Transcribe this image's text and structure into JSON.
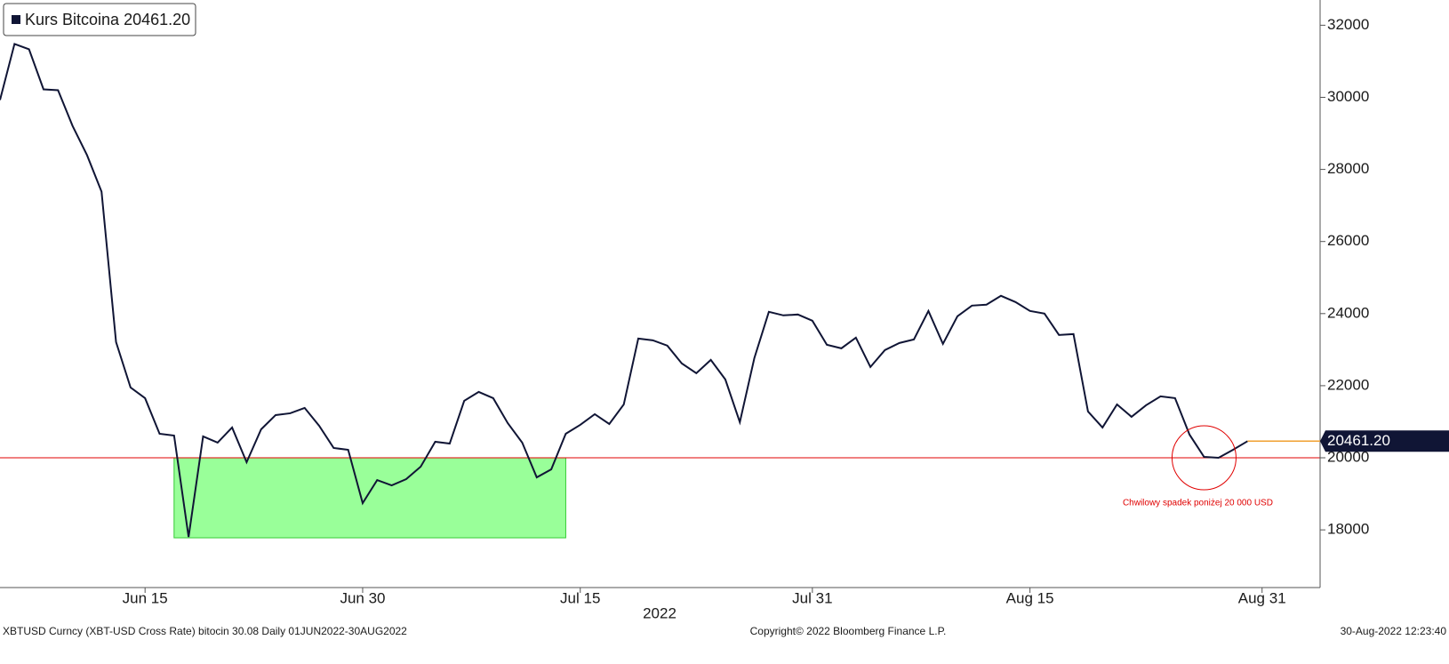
{
  "chart_data": {
    "type": "line",
    "series": [
      {
        "name": "Kurs Bitcoina",
        "color": "#101535",
        "values": [
          29926,
          31481,
          31333,
          30222,
          30198,
          29210,
          28395,
          27383,
          23210,
          21951,
          21654,
          20667,
          20617,
          17802,
          20593,
          20420,
          20840,
          19877,
          20790,
          21185,
          21235,
          21383,
          20889,
          20272,
          20222,
          18741,
          19383,
          19235,
          19407,
          19753,
          20444,
          20395,
          21580,
          21827,
          21654,
          20963,
          20420,
          19457,
          19679,
          20667,
          20914,
          21210,
          20938,
          21481,
          23309,
          23259,
          23111,
          22617,
          22346,
          22716,
          22173,
          20988,
          22765,
          24049,
          23951,
          23975,
          23802,
          23136,
          23037,
          23333,
          22519,
          22988,
          23185,
          23284,
          24074,
          23160,
          23926,
          24222,
          24247,
          24494,
          24321,
          24074,
          24000,
          23407,
          23432,
          21284,
          20840,
          21481,
          21136,
          21457,
          21704,
          21654,
          20642,
          20025,
          20000,
          20222,
          20461.2
        ],
        "value_labels": [
          null,
          null,
          null,
          null,
          null,
          null,
          null,
          null,
          null,
          null,
          null,
          null,
          null,
          null,
          null,
          null,
          null,
          null,
          null,
          null,
          null,
          null,
          null,
          null,
          null,
          null,
          null,
          null,
          null,
          null,
          null,
          null,
          null,
          null,
          null,
          null,
          null,
          null,
          null,
          null,
          null,
          null,
          null,
          null,
          null,
          null,
          null,
          null,
          null,
          null,
          null,
          null,
          null,
          null,
          null,
          null,
          null,
          null,
          null,
          null,
          null,
          null,
          null,
          null,
          null,
          null,
          null,
          null,
          null,
          null,
          null,
          null,
          null,
          null,
          null,
          null,
          null,
          null,
          null,
          null,
          null,
          null,
          null,
          null,
          null,
          null,
          "20461.20"
        ]
      }
    ],
    "x_start": "2022-06-05",
    "xlim": [
      "2022-06-05",
      "2022-09-04"
    ],
    "xticks": [
      {
        "value": "2022-06-15",
        "label": "Jun 15"
      },
      {
        "value": "2022-06-30",
        "label": "Jun 30"
      },
      {
        "value": "2022-07-15",
        "label": "Jul 15"
      },
      {
        "value": "2022-07-31",
        "label": "Jul 31"
      },
      {
        "value": "2022-08-15",
        "label": "Aug 15"
      },
      {
        "value": "2022-08-31",
        "label": "Aug 31"
      }
    ],
    "xlabel": "2022",
    "ylim": [
      16400,
      32700
    ],
    "yticks": [
      18000,
      20000,
      22000,
      24000,
      26000,
      28000,
      30000,
      32000
    ],
    "yaxis_side": "right",
    "hline": {
      "value": 20000,
      "color": "#e00000"
    },
    "highlight_box": {
      "x": [
        "2022-06-17",
        "2022-07-14"
      ],
      "y": [
        17780,
        20000
      ],
      "color": "#99ff99"
    },
    "annotation": {
      "text": "Chwilowy spadek poniżej 20 000 USD",
      "x": "2022-08-27",
      "y": 20000,
      "color": "#e00000"
    },
    "footer": {
      "left": "XBTUSD Curncy (XBT-USD Cross Rate) bitocin 30.08  Daily 01JUN2022-30AUG2022",
      "center": "Copyright© 2022 Bloomberg Finance L.P.",
      "right": "30-Aug-2022 12:23:40"
    }
  }
}
